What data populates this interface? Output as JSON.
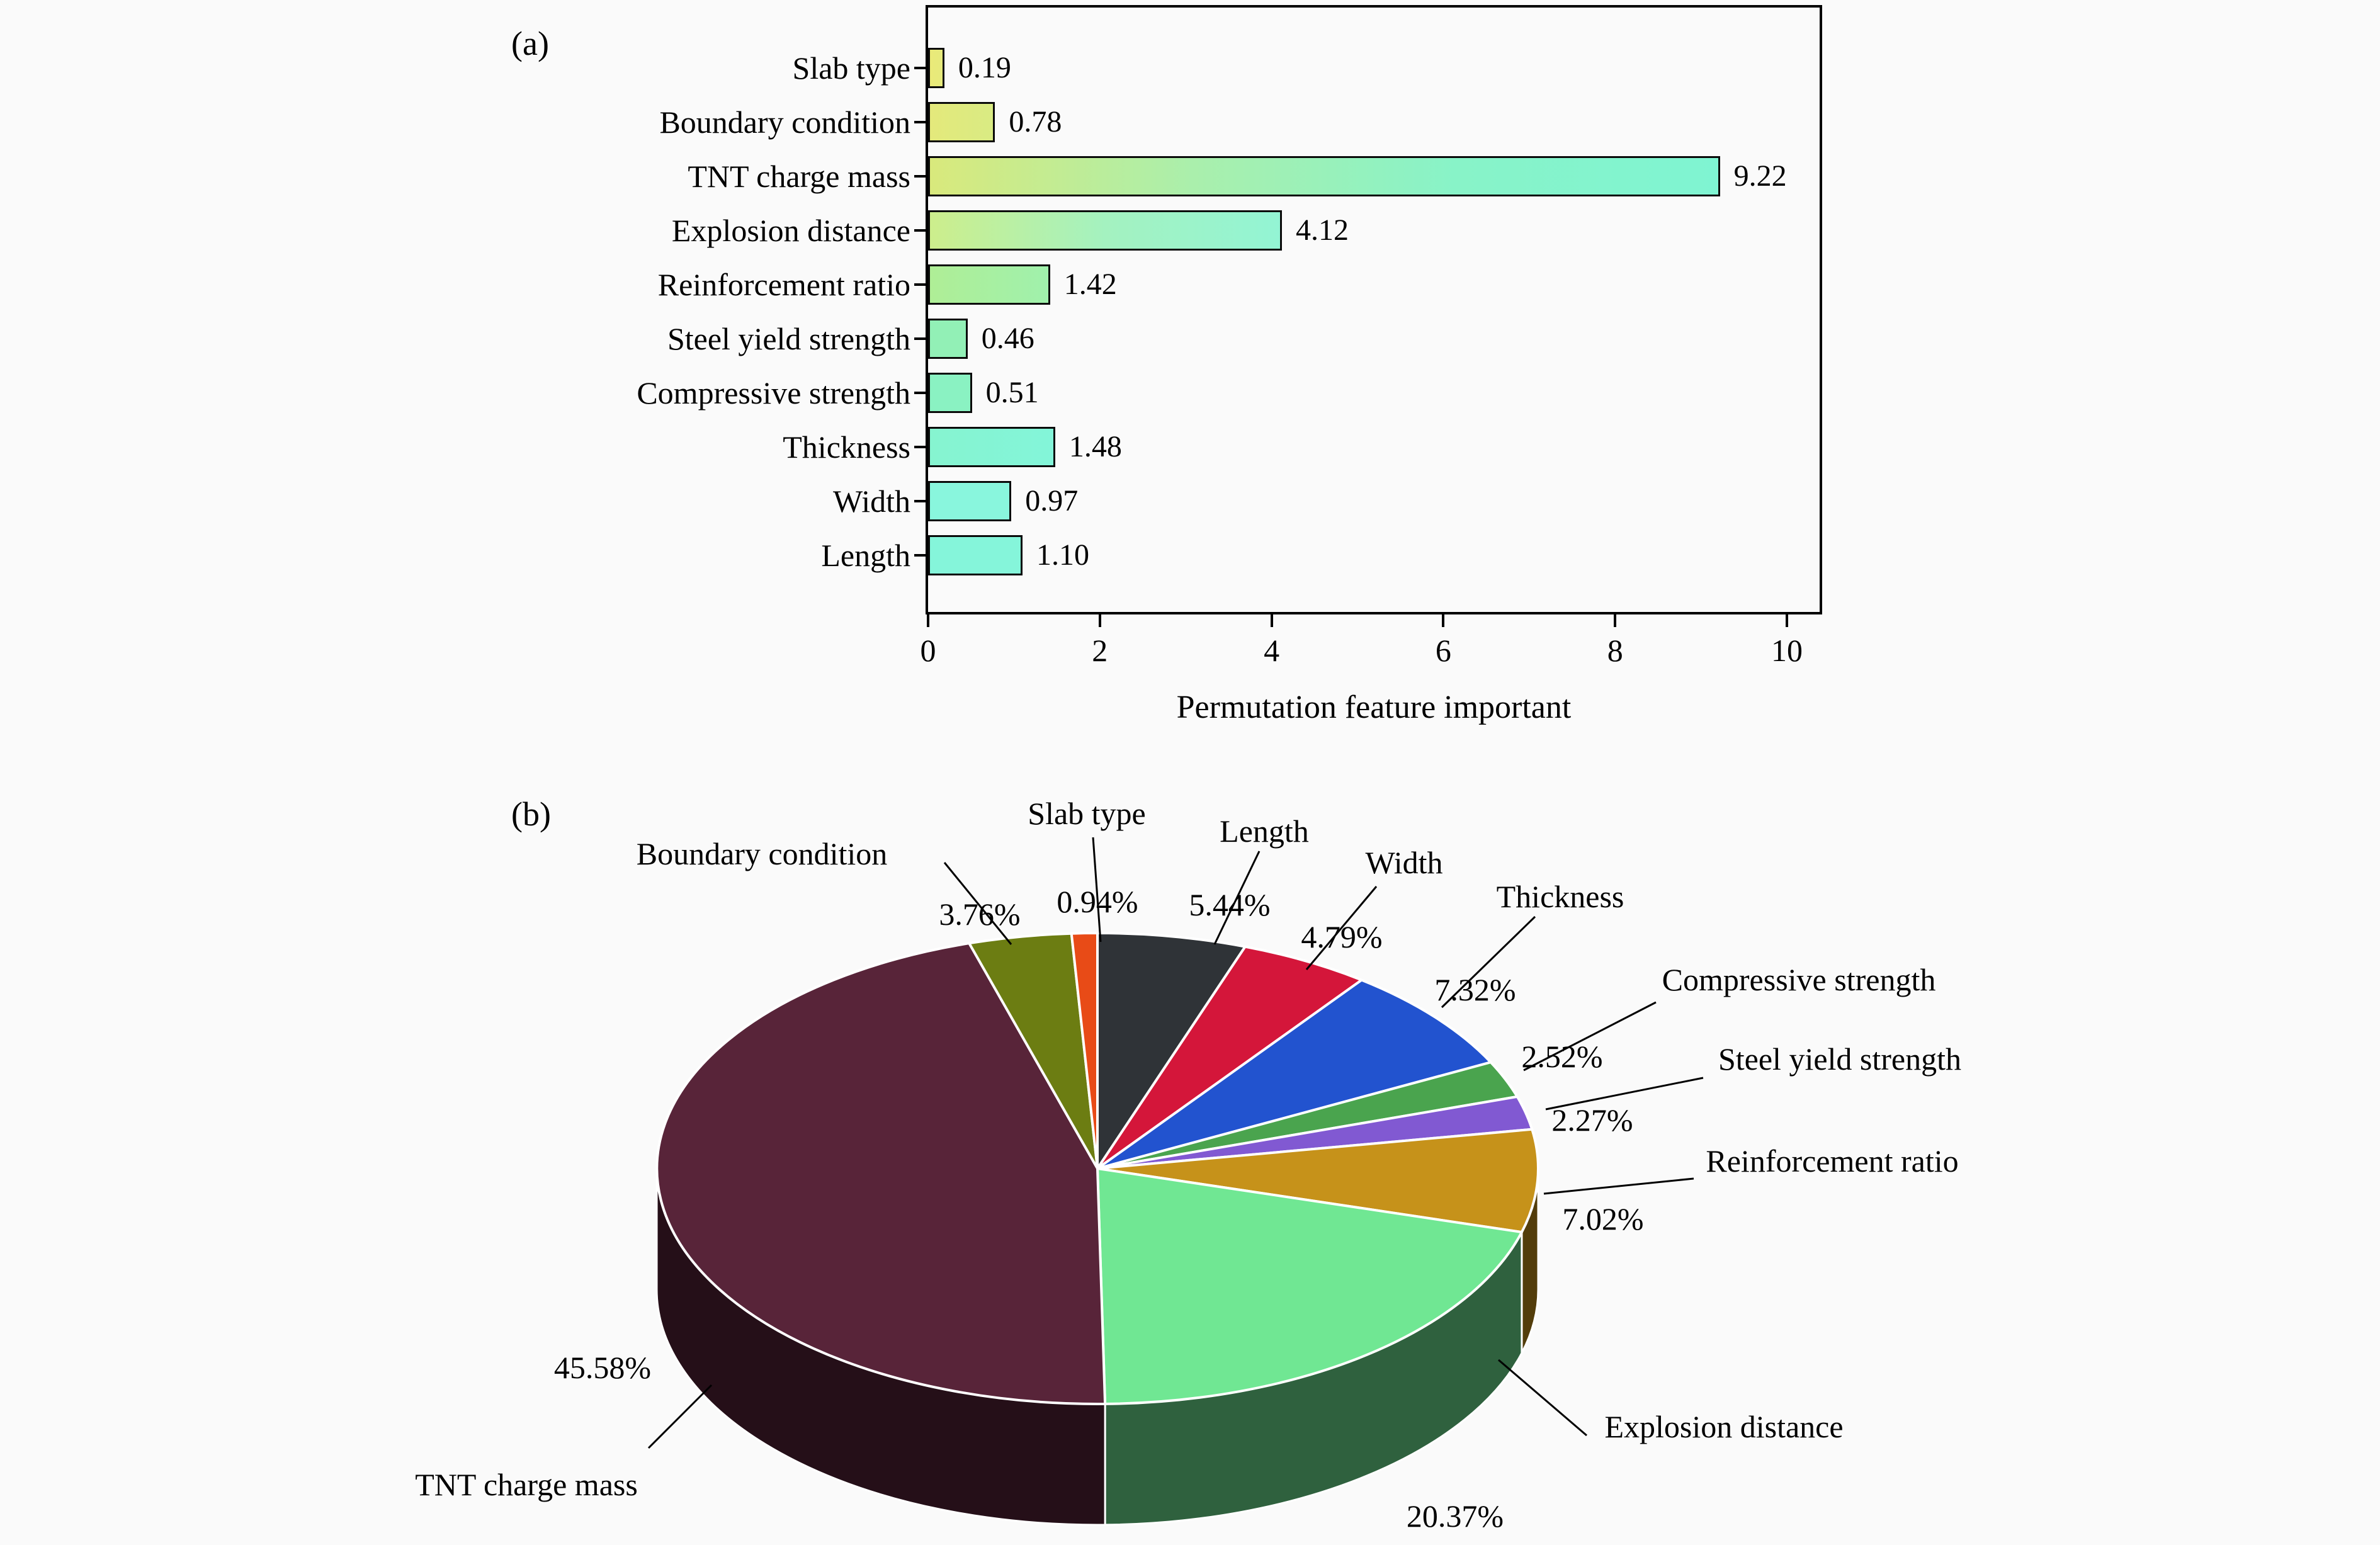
{
  "page": {
    "background": "#fafafa",
    "text_color": "#000000"
  },
  "chart_data": [
    {
      "type": "bar",
      "panel": "(a)",
      "orientation": "horizontal",
      "title": "",
      "xlabel": "Permutation feature important",
      "xlim": [
        0,
        10.4
      ],
      "xticks": [
        0,
        2,
        4,
        6,
        8,
        10
      ],
      "grid": false,
      "bars": [
        {
          "label": "Slab type",
          "value": 0.19,
          "value_label": "0.19",
          "gradient": [
            "#eaea78",
            "#e6ea7c"
          ]
        },
        {
          "label": "Boundary condition",
          "value": 0.78,
          "value_label": "0.78",
          "gradient": [
            "#e4e97b",
            "#d9eb83"
          ]
        },
        {
          "label": "TNT charge mass",
          "value": 9.22,
          "value_label": "9.22",
          "gradient": [
            "#d9e97c",
            "#aaefac",
            "#88f3c8",
            "#7ff4d2"
          ]
        },
        {
          "label": "Explosion distance",
          "value": 4.12,
          "value_label": "4.12",
          "gradient": [
            "#cdee8c",
            "#a4f2c0",
            "#93f4d4"
          ]
        },
        {
          "label": "Reinforcement ratio",
          "value": 1.42,
          "value_label": "1.42",
          "gradient": [
            "#afee96",
            "#a0f1ac"
          ]
        },
        {
          "label": "Steel yield strength",
          "value": 0.46,
          "value_label": "0.46",
          "gradient": [
            "#92f0b6"
          ]
        },
        {
          "label": "Compressive strength",
          "value": 0.51,
          "value_label": "0.51",
          "gradient": [
            "#8af2c2"
          ]
        },
        {
          "label": "Thickness",
          "value": 1.48,
          "value_label": "1.48",
          "gradient": [
            "#86f4d0",
            "#83f5d9"
          ]
        },
        {
          "label": "Width",
          "value": 0.97,
          "value_label": "0.97",
          "gradient": [
            "#89f6dd"
          ]
        },
        {
          "label": "Length",
          "value": 1.1,
          "value_label": "1.10",
          "gradient": [
            "#85f5da"
          ]
        }
      ]
    },
    {
      "type": "pie",
      "panel": "(b)",
      "style": "3d",
      "start_angle_deg": 0,
      "direction": "clockwise",
      "slices": [
        {
          "label": "Length",
          "value": 5.44,
          "pct_label": "5.44%",
          "color": "#2f3337",
          "name_pos": [
            2008,
            1320
          ],
          "pct_pos": [
            1953,
            1437
          ],
          "leader": [
            2000,
            1352,
            1929,
            1500
          ]
        },
        {
          "label": "Width",
          "value": 4.79,
          "pct_label": "4.79%",
          "color": "#d4163a",
          "name_pos": [
            2230,
            1370
          ],
          "pct_pos": [
            2131,
            1488
          ],
          "leader": [
            2186,
            1408,
            2075,
            1540
          ]
        },
        {
          "label": "Thickness",
          "value": 7.32,
          "pct_label": "7.32%",
          "color": "#2253cf",
          "name_pos": [
            2478,
            1424
          ],
          "pct_pos": [
            2343,
            1572
          ],
          "leader": [
            2438,
            1456,
            2290,
            1600
          ]
        },
        {
          "label": "Compressive strength",
          "value": 2.52,
          "pct_label": "2.52%",
          "color": "#4aa44e",
          "name_pos": [
            2857,
            1556
          ],
          "pct_pos": [
            2481,
            1678
          ],
          "leader": [
            2630,
            1592,
            2420,
            1700
          ]
        },
        {
          "label": "Steel yield strength",
          "value": 2.27,
          "pct_label": "2.27%",
          "color": "#8159d2",
          "name_pos": [
            2922,
            1682
          ],
          "pct_pos": [
            2529,
            1779
          ],
          "leader": [
            2705,
            1712,
            2455,
            1762
          ]
        },
        {
          "label": "Reinforcement ratio",
          "value": 7.02,
          "pct_label": "7.02%",
          "color": "#c6921a",
          "name_pos": [
            2910,
            1844
          ],
          "pct_pos": [
            2546,
            1936
          ],
          "leader": [
            2690,
            1872,
            2452,
            1896
          ]
        },
        {
          "label": "Explosion distance",
          "value": 20.37,
          "pct_label": "20.37%",
          "color": "#70e793",
          "name_pos": [
            2738,
            2266
          ],
          "pct_pos": [
            2311,
            2408
          ],
          "leader": [
            2520,
            2280,
            2380,
            2160
          ]
        },
        {
          "label": "TNT charge mass",
          "value": 45.58,
          "pct_label": "45.58%",
          "color": "#582439",
          "name_pos": [
            836,
            2358
          ],
          "pct_pos": [
            957,
            2172
          ],
          "leader": [
            1030,
            2300,
            1130,
            2200
          ]
        },
        {
          "label": "Boundary condition",
          "value": 3.76,
          "pct_label": "3.76%",
          "color": "#6c7d12",
          "name_pos": [
            1210,
            1356
          ],
          "pct_pos": [
            1556,
            1452
          ],
          "leader": [
            1500,
            1370,
            1606,
            1500
          ]
        },
        {
          "label": "Slab type",
          "value": 0.94,
          "pct_label": "0.94%",
          "color": "#e84b17",
          "name_pos": [
            1726,
            1292
          ],
          "pct_pos": [
            1743,
            1432
          ],
          "leader": [
            1736,
            1330,
            1748,
            1496
          ]
        }
      ]
    }
  ]
}
